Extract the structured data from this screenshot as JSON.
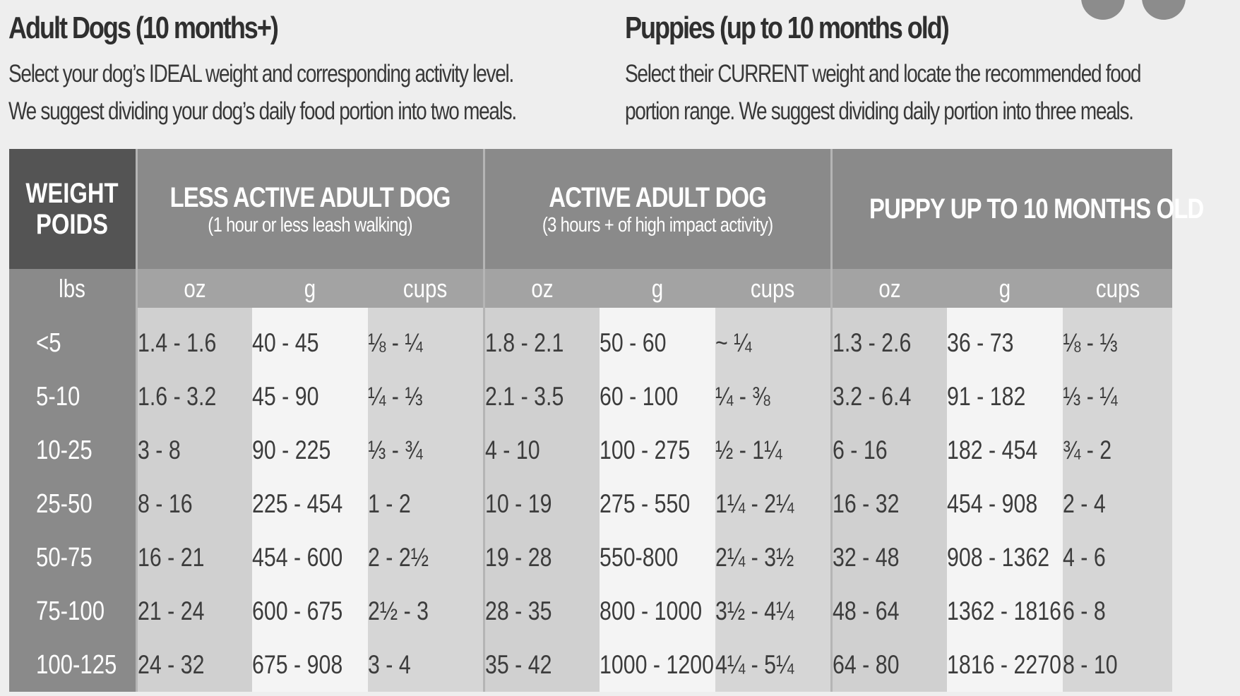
{
  "adult": {
    "title": "Adult Dogs (10 months+)",
    "line1": "Select your dog’s IDEAL weight and corresponding activity level.",
    "line2": "We suggest dividing your dog’s daily food portion into two meals."
  },
  "puppy": {
    "title": "Puppies (up to 10 months old)",
    "line1": "Select their CURRENT weight and locate the recommended food",
    "line2": "portion range. We suggest dividing daily portion into three meals."
  },
  "table": {
    "weight_header_line1": "WEIGHT",
    "weight_header_line2": "POIDS",
    "groups": [
      {
        "title": "LESS ACTIVE ADULT DOG",
        "subtitle": "(1 hour or less leash walking)"
      },
      {
        "title": "ACTIVE ADULT DOG",
        "subtitle": "(3 hours + of high impact activity)"
      },
      {
        "title": "PUPPY UP TO 10 MONTHS OLD",
        "subtitle": ""
      }
    ],
    "units": {
      "weight": "lbs",
      "oz": "oz",
      "g": "g",
      "cups": "cups"
    },
    "rows": [
      {
        "weight": "<5",
        "cells": [
          "1.4 - 1.6",
          "40 - 45",
          "⅛ - ¼",
          "1.8 - 2.1",
          "50 - 60",
          "~ ¼",
          "1.3 - 2.6",
          "36 - 73",
          "⅛ - ⅓"
        ]
      },
      {
        "weight": "5-10",
        "cells": [
          "1.6 - 3.2",
          "45 - 90",
          "¼ - ⅓",
          "2.1 - 3.5",
          "60 - 100",
          "¼ - ⅜",
          "3.2 - 6.4",
          "91 - 182",
          "⅓ - ¼"
        ]
      },
      {
        "weight": "10-25",
        "cells": [
          "3 - 8",
          "90 - 225",
          "⅓ - ¾",
          "4 - 10",
          "100 - 275",
          "½ - 1¼",
          "6 - 16",
          "182 - 454",
          "¾ - 2"
        ]
      },
      {
        "weight": "25-50",
        "cells": [
          "8 - 16",
          "225 - 454",
          "1 - 2",
          "10 - 19",
          "275 - 550",
          "1¼ - 2¼",
          "16 - 32",
          "454 - 908",
          "2 - 4"
        ]
      },
      {
        "weight": "50-75",
        "cells": [
          "16 - 21",
          "454 - 600",
          "2 - 2½",
          "19 - 28",
          "550-800",
          "2¼ - 3½",
          "32 - 48",
          "908 - 1362",
          "4 - 6"
        ]
      },
      {
        "weight": "75-100",
        "cells": [
          "21 - 24",
          "600 - 675",
          "2½ - 3",
          "28 - 35",
          "800 - 1000",
          "3½ - 4¼",
          "48 - 64",
          "1362 - 1816",
          "6 - 8"
        ]
      },
      {
        "weight": "100-125",
        "cells": [
          "24 - 32",
          "675 - 908",
          "3 - 4",
          "35 - 42",
          "1000 - 1200",
          "4¼ - 5¼",
          "64 - 80",
          "1816 - 2270",
          "8 - 10"
        ]
      }
    ]
  }
}
